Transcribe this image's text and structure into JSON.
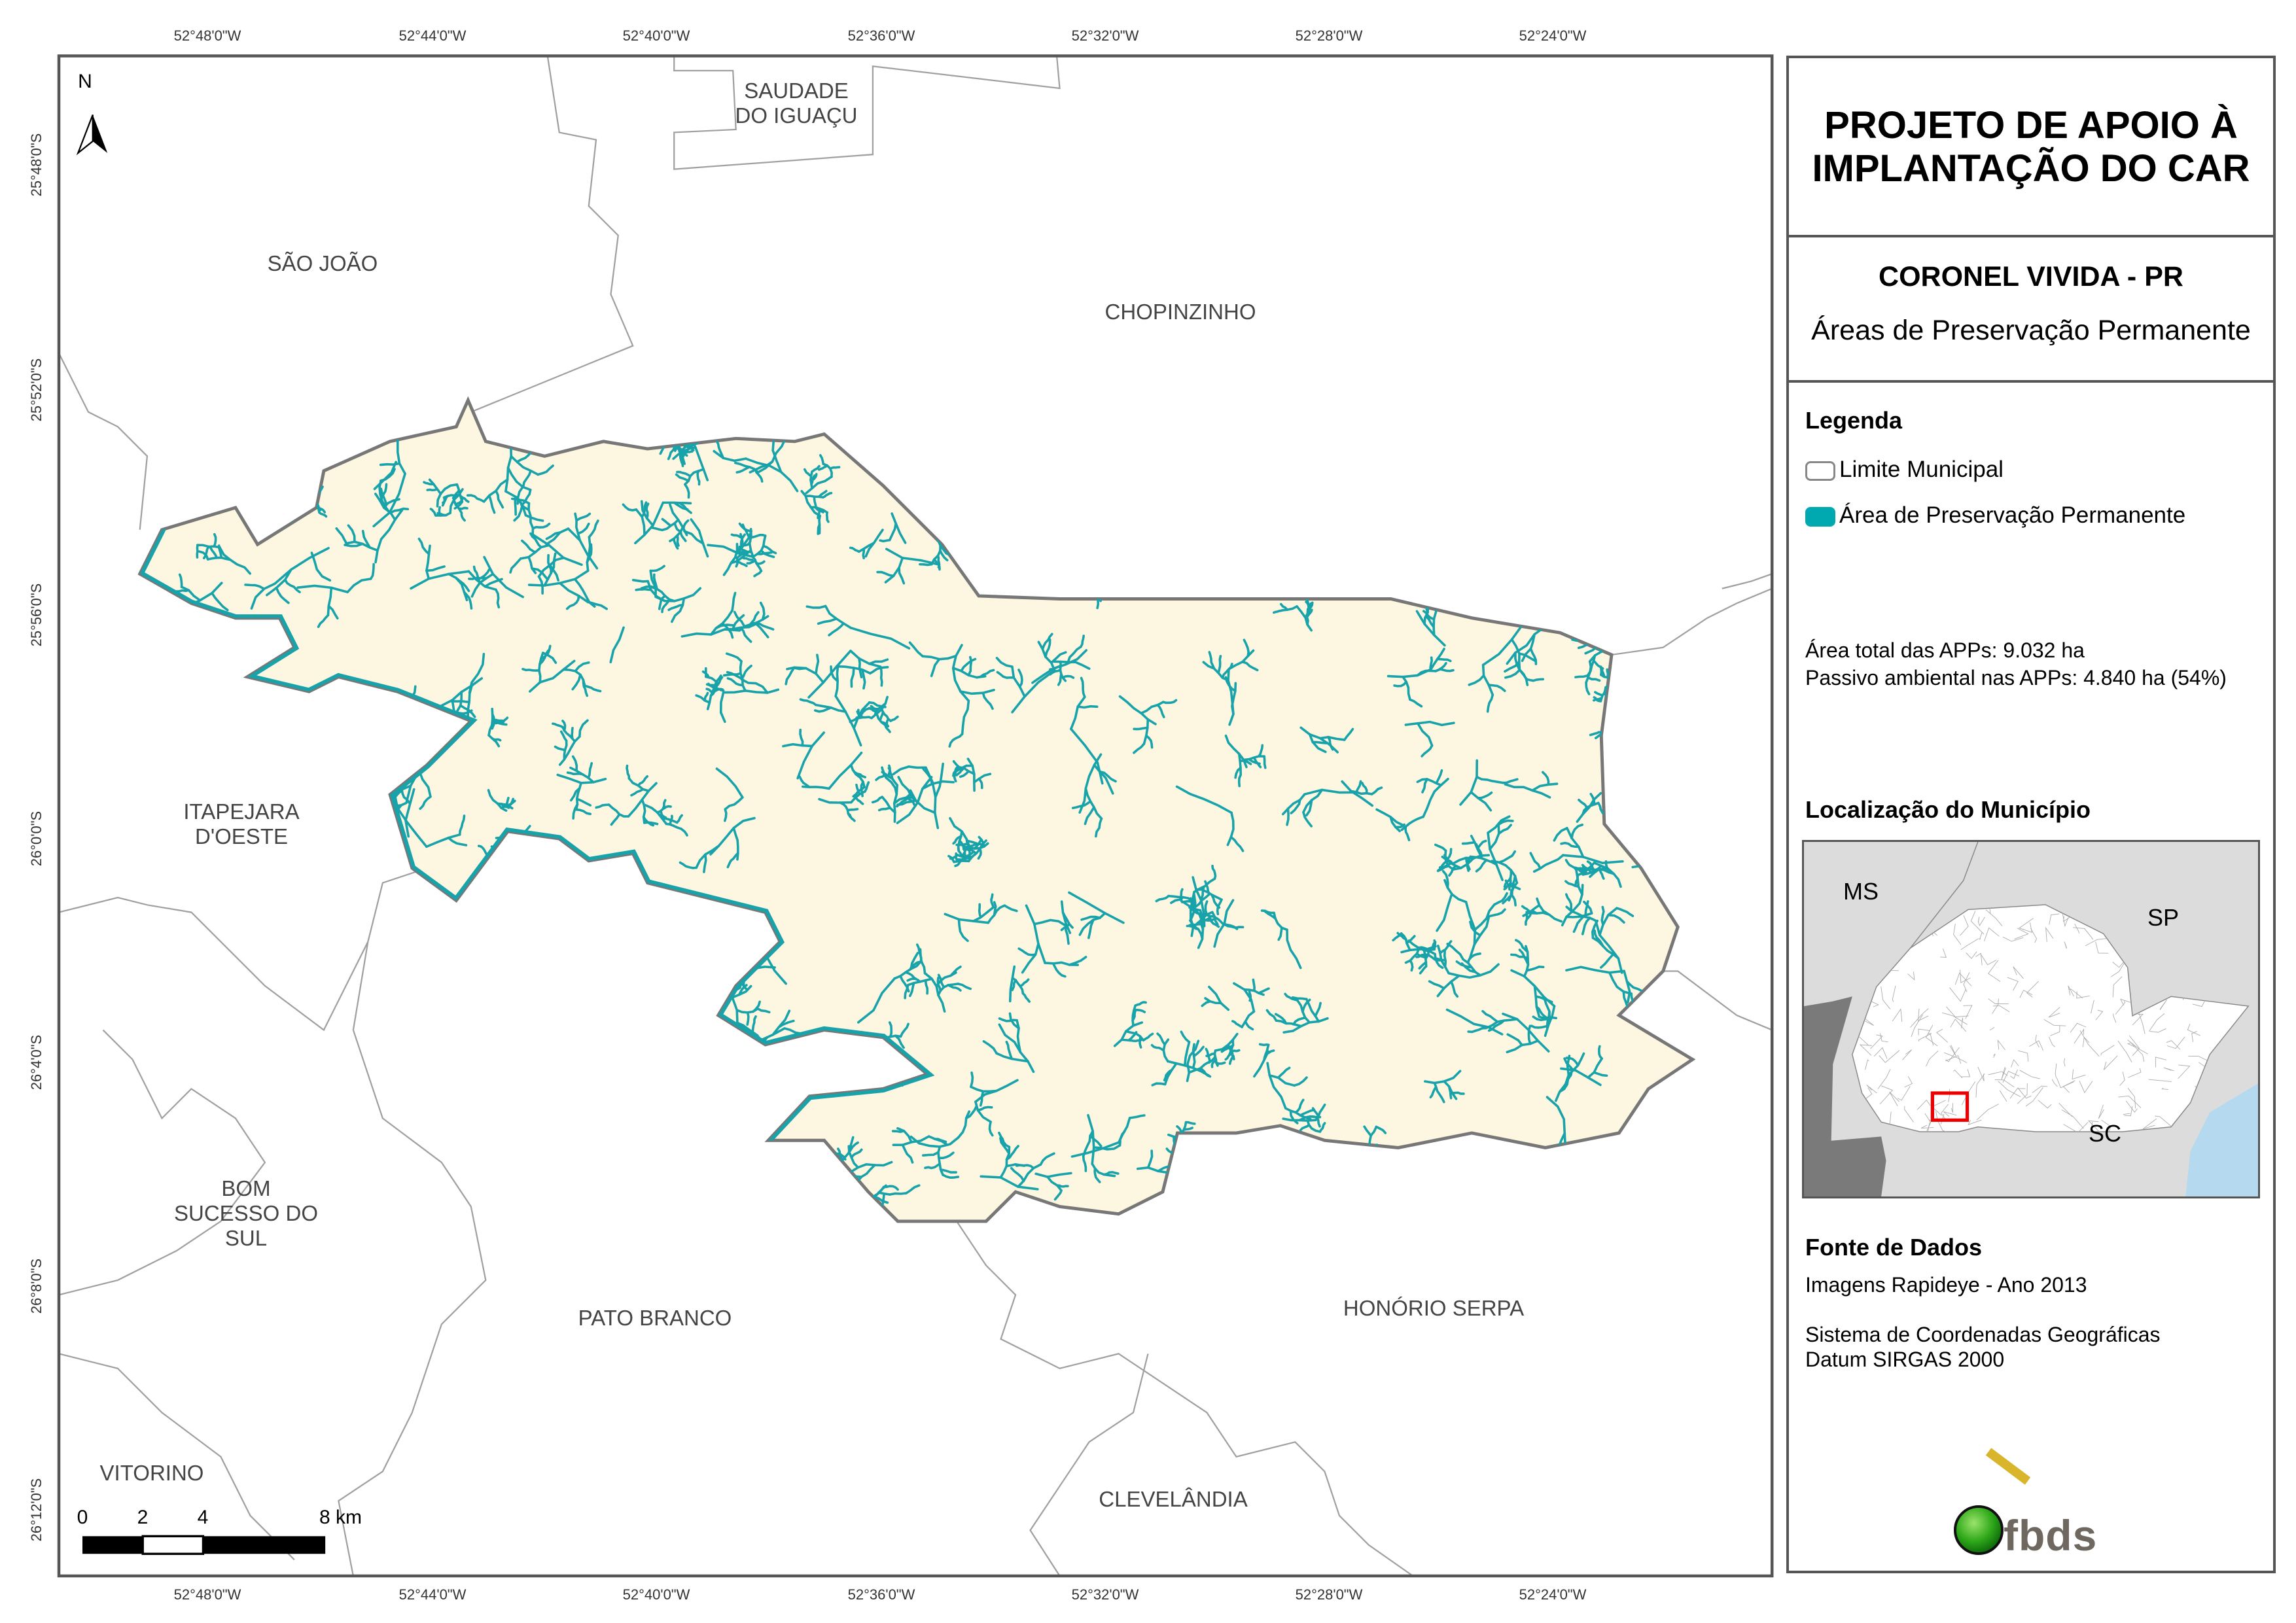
{
  "map": {
    "top_ticks": [
      "52°48'0\"W",
      "52°44'0\"W",
      "52°40'0\"W",
      "52°36'0\"W",
      "52°32'0\"W",
      "52°28'0\"W",
      "52°24'0\"W"
    ],
    "bottom_ticks": [
      "52°48'0\"W",
      "52°44'0\"W",
      "52°40'0\"W",
      "52°36'0\"W",
      "52°32'0\"W",
      "52°28'0\"W",
      "52°24'0\"W"
    ],
    "left_ticks": [
      "25°48'0\"S",
      "25°52'0\"S",
      "25°56'0\"S",
      "26°0'0\"S",
      "26°4'0\"S",
      "26°8'0\"S",
      "26°12'0\"S"
    ],
    "north_label": "N",
    "places": {
      "saudade": [
        "SAUDADE",
        "DO IGUAÇU"
      ],
      "sao_joao": "SÃO JOÃO",
      "chopinzinho": "CHOPINZINHO",
      "itapejara": [
        "ITAPEJARA",
        "D'OESTE"
      ],
      "bom_sucesso": [
        "BOM",
        "SUCESSO DO",
        "SUL"
      ],
      "pato_branco": "PATO BRANCO",
      "honorio_serpa": "HONÓRIO SERPA",
      "clevelandia": "CLEVELÂNDIA",
      "vitorino": "VITORINO"
    },
    "scale_labels": [
      "0",
      "2",
      "4",
      "8 km"
    ],
    "colors": {
      "municipality_fill": "#fdf6e0",
      "app": "#18a3aa",
      "boundary": "#777777",
      "neighbor_line": "#9a9a9a"
    }
  },
  "panel": {
    "title_line1": "PROJETO DE APOIO À",
    "title_line2": "IMPLANTAÇÃO DO CAR",
    "municipality": "CORONEL VIVIDA - PR",
    "theme": "Áreas de Preservação Permanente",
    "legend_title": "Legenda",
    "legend_items": [
      {
        "label": "Limite Municipal",
        "color": "#ffffff"
      },
      {
        "label": "Área de Preservação Permanente",
        "color": "#00a8b0"
      }
    ],
    "stats": {
      "area_label": "Área total das APPs:",
      "area_value": "9.032 ha",
      "passivo_label": "Passivo ambiental nas APPs:",
      "passivo_value": "4.840 ha (54%)"
    },
    "location_title": "Localização do Município",
    "inset_labels": {
      "ms": "MS",
      "sp": "SP",
      "sc": "SC"
    },
    "source_title": "Fonte de Dados",
    "source_line1": "Imagens Rapideye - Ano 2013",
    "source_line2": "Sistema de Coordenadas Geográficas",
    "source_line3": "Datum SIRGAS 2000",
    "logo_text": "fbds"
  }
}
